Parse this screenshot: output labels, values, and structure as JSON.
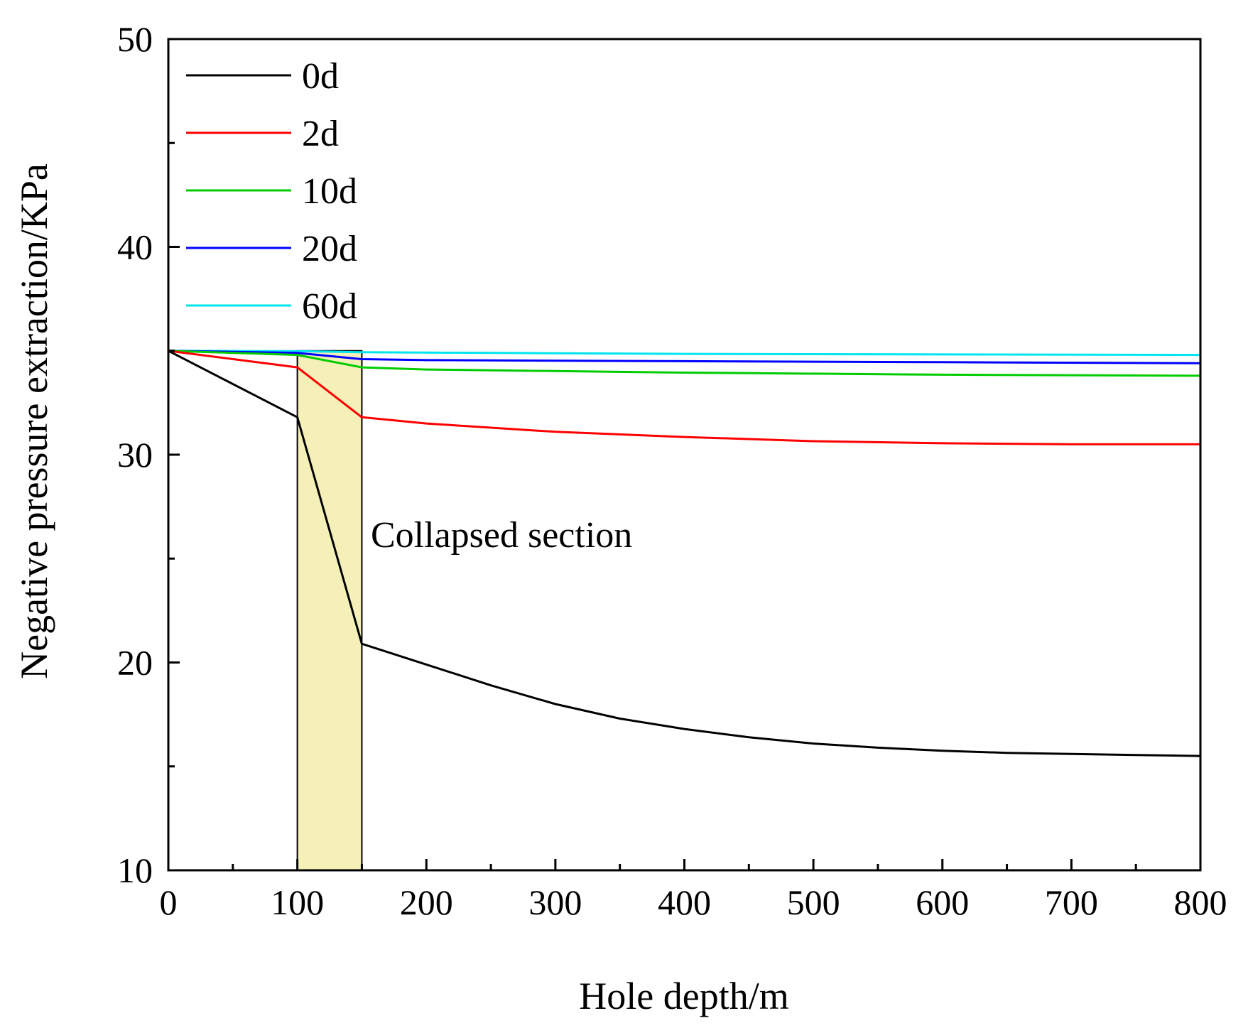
{
  "chart_data": {
    "type": "line",
    "title": "",
    "xlabel": "Hole depth/m",
    "ylabel": "Negative pressure extraction/KPa",
    "xlim": [
      0,
      800
    ],
    "ylim": [
      10,
      50
    ],
    "xticks": [
      0,
      100,
      200,
      300,
      400,
      500,
      600,
      700,
      800
    ],
    "yticks": [
      10,
      20,
      30,
      40,
      50
    ],
    "grid": false,
    "legend_position": "top-left",
    "annotation": {
      "text": "Collapsed section",
      "x_range": [
        100,
        150
      ],
      "y_top": 35,
      "fill": "#f5efb8"
    },
    "series": [
      {
        "name": "0d",
        "color": "#000000",
        "x": [
          0,
          100,
          150,
          200,
          250,
          300,
          350,
          400,
          450,
          500,
          550,
          600,
          650,
          700,
          750,
          800
        ],
        "y": [
          35,
          31.8,
          20.9,
          19.9,
          18.9,
          18.0,
          17.3,
          16.8,
          16.4,
          16.1,
          15.9,
          15.75,
          15.65,
          15.6,
          15.55,
          15.5
        ]
      },
      {
        "name": "2d",
        "color": "#ff0000",
        "x": [
          0,
          100,
          150,
          200,
          300,
          400,
          500,
          600,
          700,
          800
        ],
        "y": [
          35,
          34.2,
          31.8,
          31.5,
          31.1,
          30.85,
          30.65,
          30.55,
          30.5,
          30.5
        ]
      },
      {
        "name": "10d",
        "color": "#00cc00",
        "x": [
          0,
          100,
          150,
          200,
          400,
          600,
          800
        ],
        "y": [
          35,
          34.8,
          34.2,
          34.1,
          33.95,
          33.85,
          33.8
        ]
      },
      {
        "name": "20d",
        "color": "#0000ff",
        "x": [
          0,
          100,
          150,
          200,
          400,
          600,
          800
        ],
        "y": [
          35,
          34.9,
          34.6,
          34.55,
          34.5,
          34.45,
          34.4
        ]
      },
      {
        "name": "60d",
        "color": "#00e5ee",
        "x": [
          0,
          100,
          150,
          400,
          800
        ],
        "y": [
          35,
          34.98,
          34.93,
          34.85,
          34.8
        ]
      }
    ]
  }
}
